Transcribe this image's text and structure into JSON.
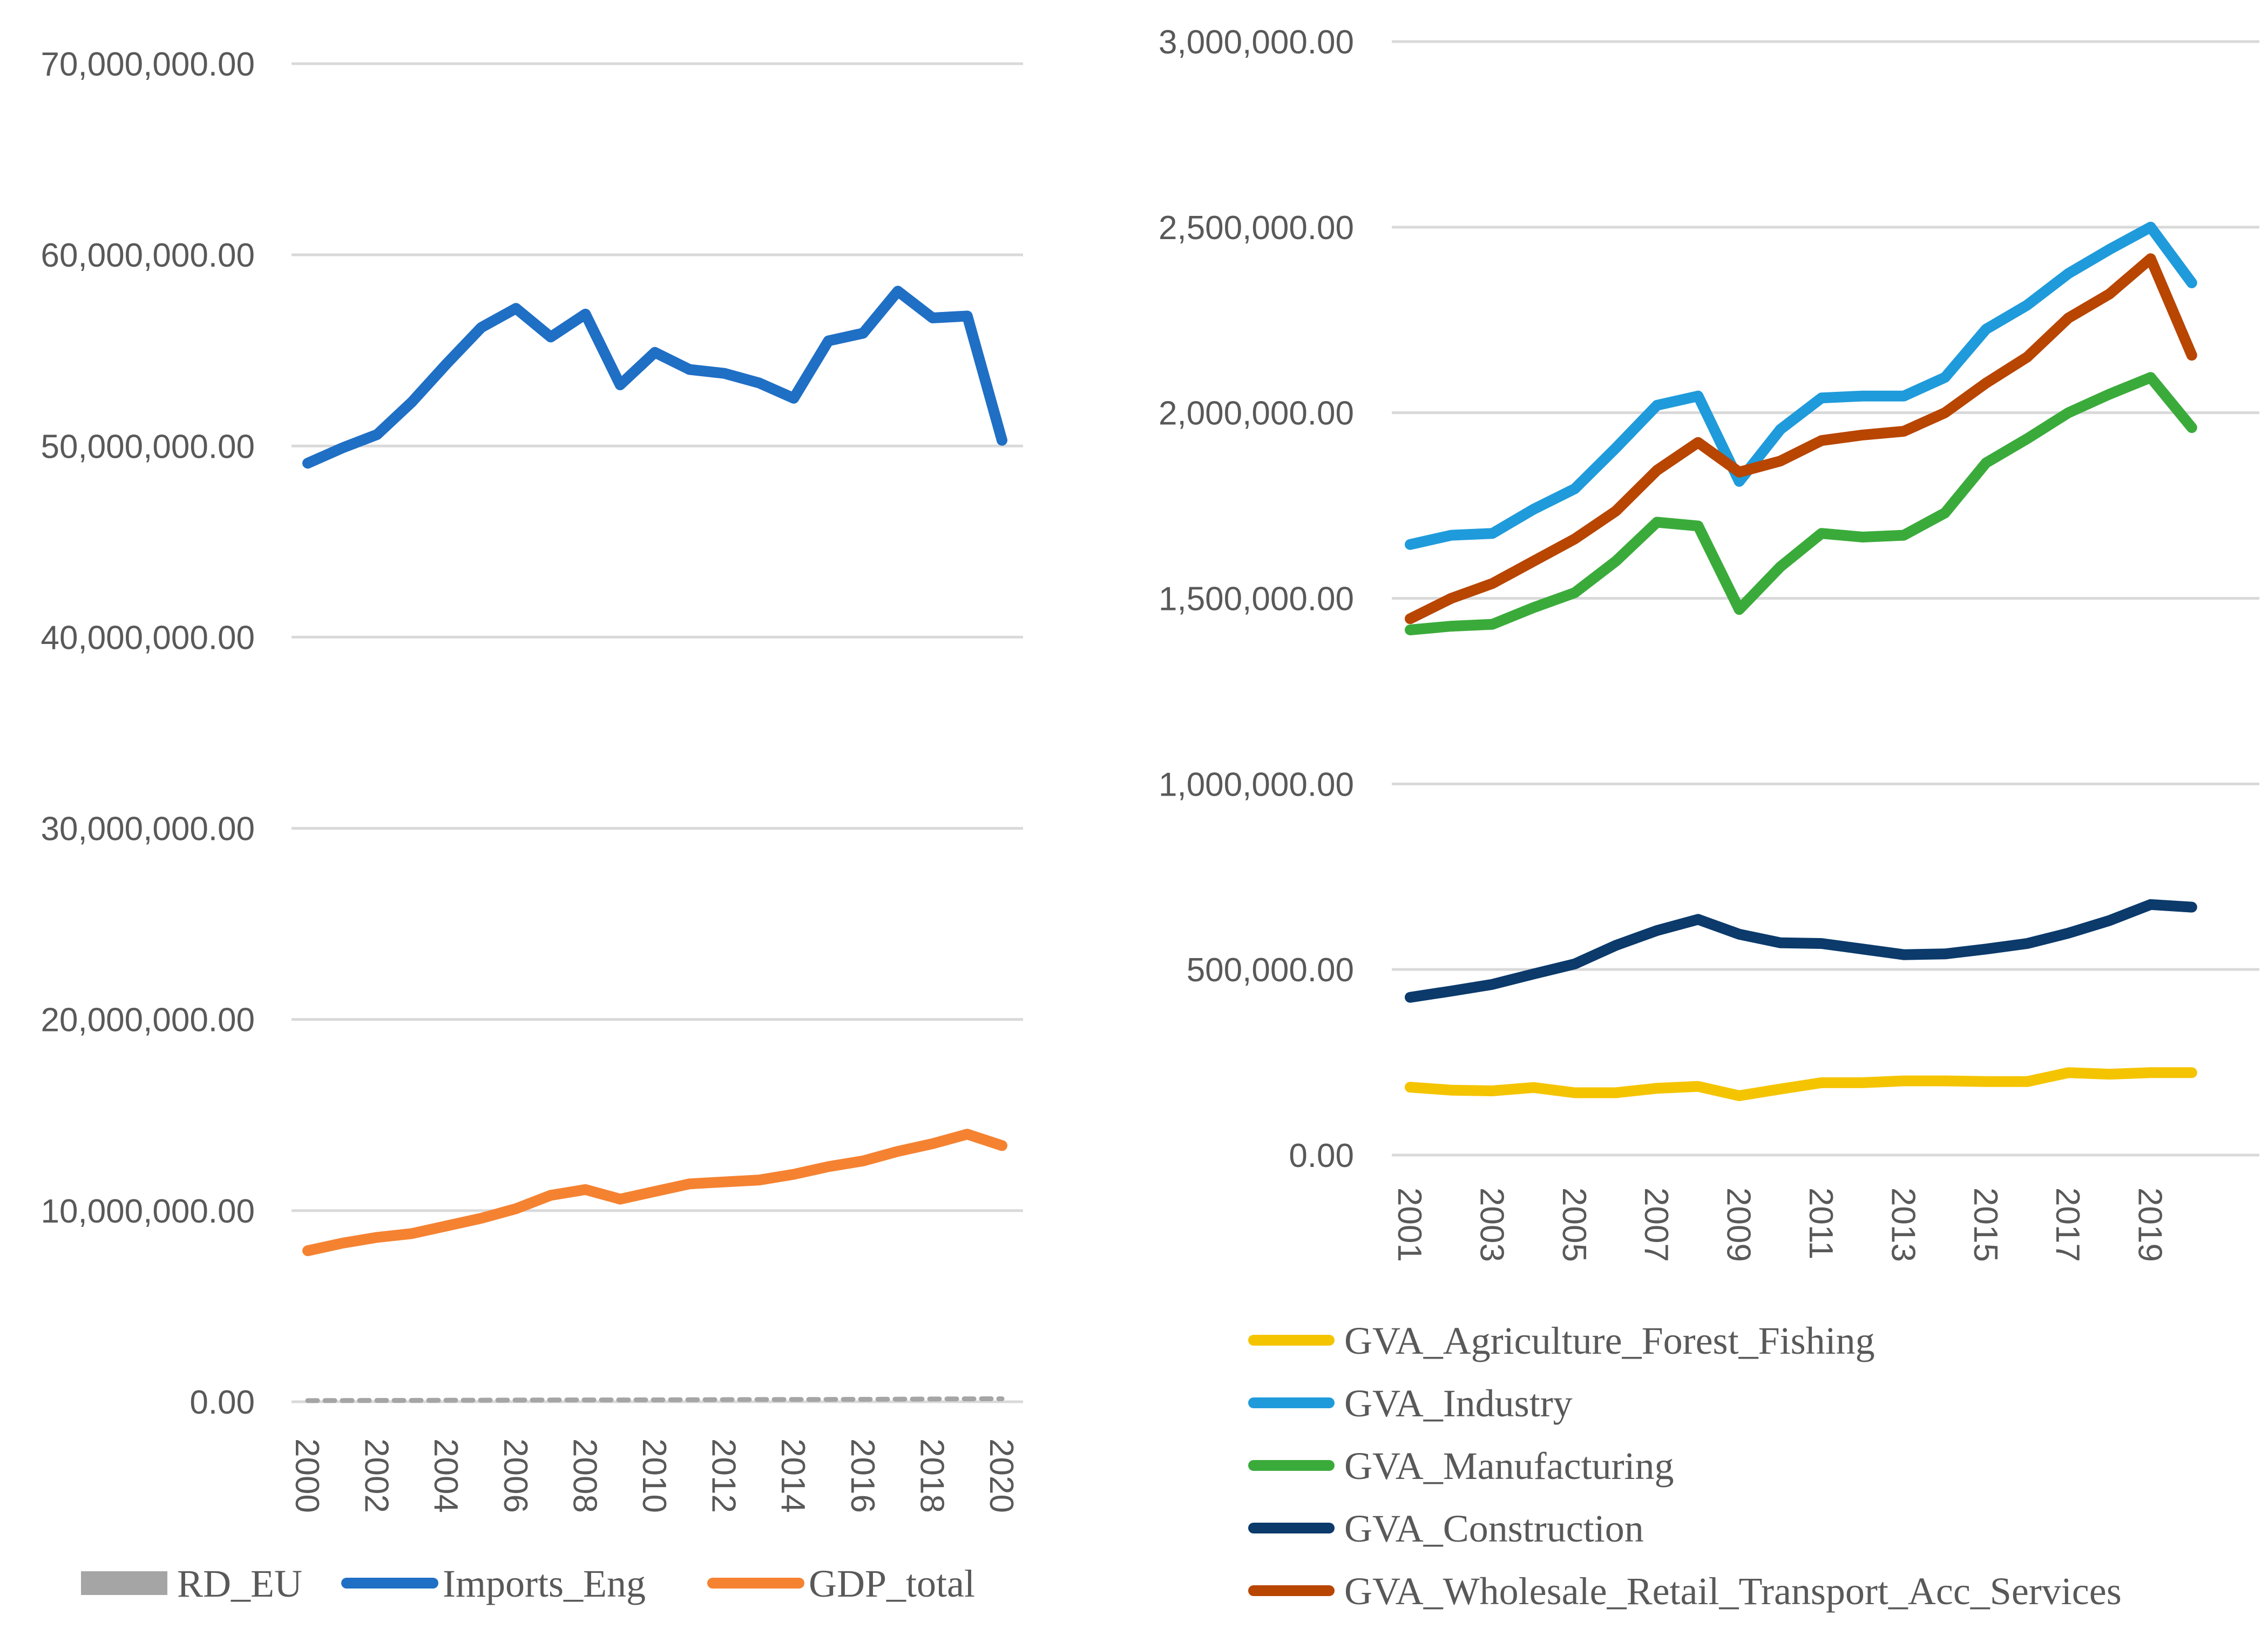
{
  "chart_data": [
    {
      "type": "line",
      "title": "",
      "xlabel": "",
      "ylabel": "",
      "x": [
        "2000",
        "2001",
        "2002",
        "2003",
        "2004",
        "2005",
        "2006",
        "2007",
        "2008",
        "2009",
        "2010",
        "2011",
        "2012",
        "2013",
        "2014",
        "2015",
        "2016",
        "2017",
        "2018",
        "2019",
        "2020"
      ],
      "x_tick_labels": [
        "2000",
        "2002",
        "2004",
        "2006",
        "2008",
        "2010",
        "2012",
        "2014",
        "2016",
        "2018",
        "2020"
      ],
      "ylim": [
        0,
        70000000
      ],
      "y_tick_labels": [
        "0.00",
        "10,000,000.00",
        "20,000,000.00",
        "30,000,000.00",
        "40,000,000.00",
        "50,000,000.00",
        "60,000,000.00",
        "70,000,000.00"
      ],
      "grid": true,
      "legend_position": "bottom",
      "series": [
        {
          "name": "RD_EU",
          "color": "#a5a5a5",
          "style": "dashed",
          "values": [
            60000,
            65000,
            70000,
            72000,
            78000,
            82000,
            88000,
            92000,
            96000,
            95000,
            100000,
            105000,
            110000,
            115000,
            118000,
            122000,
            128000,
            135000,
            145000,
            152000,
            155000
          ]
        },
        {
          "name": "Imports_Eng",
          "color": "#1f6fc5",
          "style": "solid",
          "values": [
            49100000,
            49900000,
            50600000,
            52300000,
            54300000,
            56200000,
            57200000,
            55700000,
            56900000,
            53200000,
            54900000,
            54000000,
            53800000,
            53300000,
            52500000,
            55500000,
            55900000,
            58100000,
            56700000,
            56800000,
            50300000
          ]
        },
        {
          "name": "GDP_total",
          "color": "#f58231",
          "style": "solid",
          "values": [
            7900000,
            8300000,
            8600000,
            8800000,
            9200000,
            9600000,
            10100000,
            10800000,
            11100000,
            10600000,
            11000000,
            11400000,
            11500000,
            11600000,
            11900000,
            12300000,
            12600000,
            13100000,
            13500000,
            14000000,
            13400000
          ]
        }
      ]
    },
    {
      "type": "line",
      "title": "",
      "xlabel": "",
      "ylabel": "",
      "x": [
        "2001",
        "2002",
        "2003",
        "2004",
        "2005",
        "2006",
        "2007",
        "2008",
        "2009",
        "2010",
        "2011",
        "2012",
        "2013",
        "2014",
        "2015",
        "2016",
        "2017",
        "2018",
        "2019",
        "2020"
      ],
      "x_tick_labels": [
        "2001",
        "2003",
        "2005",
        "2007",
        "2009",
        "2011",
        "2013",
        "2015",
        "2017",
        "2019"
      ],
      "ylim": [
        0,
        3000000
      ],
      "y_tick_labels": [
        "0.00",
        "500,000.00",
        "1,000,000.00",
        "1,500,000.00",
        "2,000,000.00",
        "2,500,000.00",
        "3,000,000.00"
      ],
      "grid": true,
      "legend_position": "bottom",
      "series": [
        {
          "name": "GVA_Agriculture_Forest_Fishing",
          "color": "#f5c400",
          "values": [
            183000,
            175000,
            173000,
            182000,
            168000,
            168000,
            180000,
            185000,
            160000,
            178000,
            195000,
            195000,
            200000,
            200000,
            198000,
            198000,
            222000,
            218000,
            222000,
            222000
          ]
        },
        {
          "name": "GVA_Industry",
          "color": "#1f9bdb",
          "values": [
            1645000,
            1670000,
            1675000,
            1740000,
            1795000,
            1905000,
            2020000,
            2045000,
            1815000,
            1955000,
            2040000,
            2045000,
            2045000,
            2095000,
            2225000,
            2290000,
            2375000,
            2440000,
            2500000,
            2350000
          ]
        },
        {
          "name": "GVA_Manufacturing",
          "color": "#3aab3a",
          "values": [
            1415000,
            1425000,
            1430000,
            1475000,
            1515000,
            1600000,
            1705000,
            1695000,
            1470000,
            1585000,
            1675000,
            1665000,
            1670000,
            1730000,
            1865000,
            1930000,
            2000000,
            2050000,
            2095000,
            1960000
          ]
        },
        {
          "name": "GVA_Construction",
          "color": "#0b3a6b",
          "values": [
            425000,
            442000,
            460000,
            488000,
            515000,
            565000,
            605000,
            635000,
            595000,
            572000,
            570000,
            555000,
            540000,
            542000,
            555000,
            570000,
            598000,
            632000,
            675000,
            668000
          ]
        },
        {
          "name": "GVA_Wholesale_Retail_Transport_Acc_Services",
          "color": "#b84500",
          "values": [
            1445000,
            1500000,
            1540000,
            1600000,
            1660000,
            1735000,
            1845000,
            1920000,
            1840000,
            1870000,
            1925000,
            1940000,
            1950000,
            2000000,
            2080000,
            2150000,
            2255000,
            2320000,
            2415000,
            2155000
          ]
        }
      ]
    }
  ]
}
